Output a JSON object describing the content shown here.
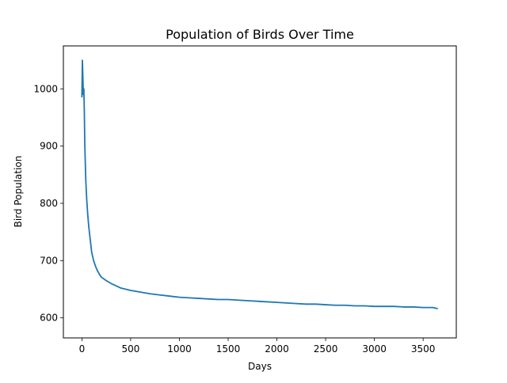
{
  "chart_data": {
    "type": "line",
    "title": "Population of Birds Over Time",
    "xlabel": "Days",
    "ylabel": "Bird Population",
    "xlim": [
      -190,
      3840
    ],
    "ylim": [
      565,
      1075
    ],
    "xticks": [
      0,
      500,
      1000,
      1500,
      2000,
      2500,
      3000,
      3500
    ],
    "yticks": [
      600,
      700,
      800,
      900,
      1000
    ],
    "grid": false,
    "legend": "none",
    "series": [
      {
        "color": "#1f77b4",
        "x": [
          0,
          5,
          10,
          15,
          20,
          25,
          30,
          40,
          50,
          60,
          70,
          80,
          90,
          100,
          120,
          140,
          160,
          180,
          200,
          250,
          300,
          350,
          400,
          500,
          600,
          700,
          800,
          900,
          1000,
          1100,
          1200,
          1300,
          1400,
          1500,
          1600,
          1700,
          1800,
          1900,
          2000,
          2100,
          2200,
          2300,
          2400,
          2500,
          2600,
          2700,
          2800,
          2900,
          3000,
          3100,
          3200,
          3300,
          3400,
          3500,
          3600,
          3650
        ],
        "y": [
          985,
          1050,
          1020,
          990,
          1000,
          960,
          900,
          840,
          805,
          780,
          760,
          745,
          730,
          715,
          700,
          690,
          682,
          676,
          671,
          665,
          660,
          656,
          652,
          648,
          645,
          642,
          640,
          638,
          636,
          635,
          634,
          633,
          632,
          632,
          631,
          630,
          629,
          628,
          627,
          626,
          625,
          624,
          624,
          623,
          622,
          622,
          621,
          621,
          620,
          620,
          620,
          619,
          619,
          618,
          618,
          616
        ]
      }
    ]
  }
}
